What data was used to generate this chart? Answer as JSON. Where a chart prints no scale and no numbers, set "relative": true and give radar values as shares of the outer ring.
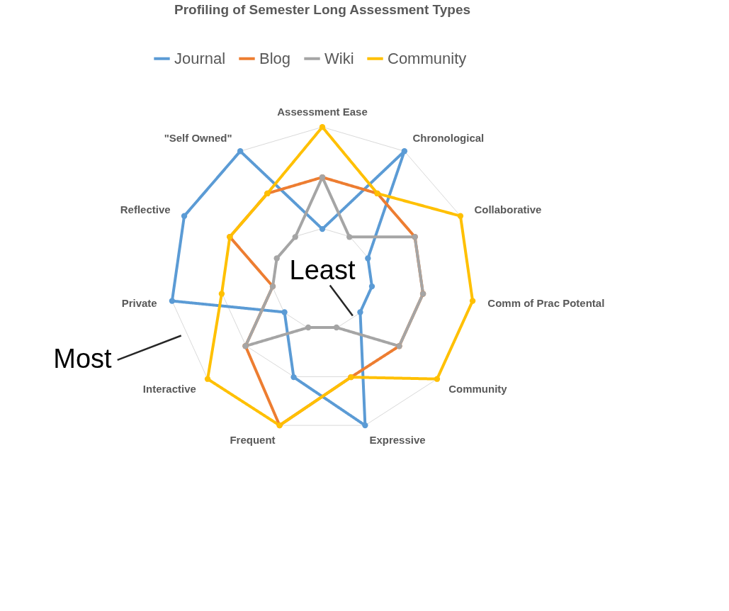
{
  "chart_data": {
    "type": "radar",
    "title": "Profiling of Semester Long Assessment Types",
    "categories": [
      "Assessment Ease",
      "Chronological",
      "Collaborative",
      "Comm of Prac Potental",
      "Community",
      "Expressive",
      "Frequent",
      "Interactive",
      "Private",
      "Reflective",
      "\"Self Owned\""
    ],
    "series": [
      {
        "name": "Journal",
        "color": "#5b9bd5",
        "values": [
          0.33,
          1,
          0.33,
          0.33,
          0.33,
          1,
          0.67,
          0.33,
          1,
          1,
          1
        ]
      },
      {
        "name": "Blog",
        "color": "#ed7d31",
        "values": [
          0.67,
          0.67,
          0.67,
          0.67,
          0.67,
          0.67,
          1,
          0.67,
          0.33,
          0.67,
          0.67
        ]
      },
      {
        "name": "Wiki",
        "color": "#a5a5a5",
        "values": [
          0.67,
          0.33,
          0.67,
          0.67,
          0.67,
          0.33,
          0.33,
          0.67,
          0.33,
          0.33,
          0.33
        ]
      },
      {
        "name": "Community",
        "color": "#ffc000",
        "values": [
          1,
          0.67,
          1,
          1,
          1,
          0.67,
          1,
          1,
          0.67,
          0.67,
          0.67
        ]
      }
    ],
    "relative": true,
    "grid": true,
    "legend": "top",
    "marker": "circle",
    "line_style": "solid",
    "annotations": [
      "Least",
      "Most"
    ]
  }
}
